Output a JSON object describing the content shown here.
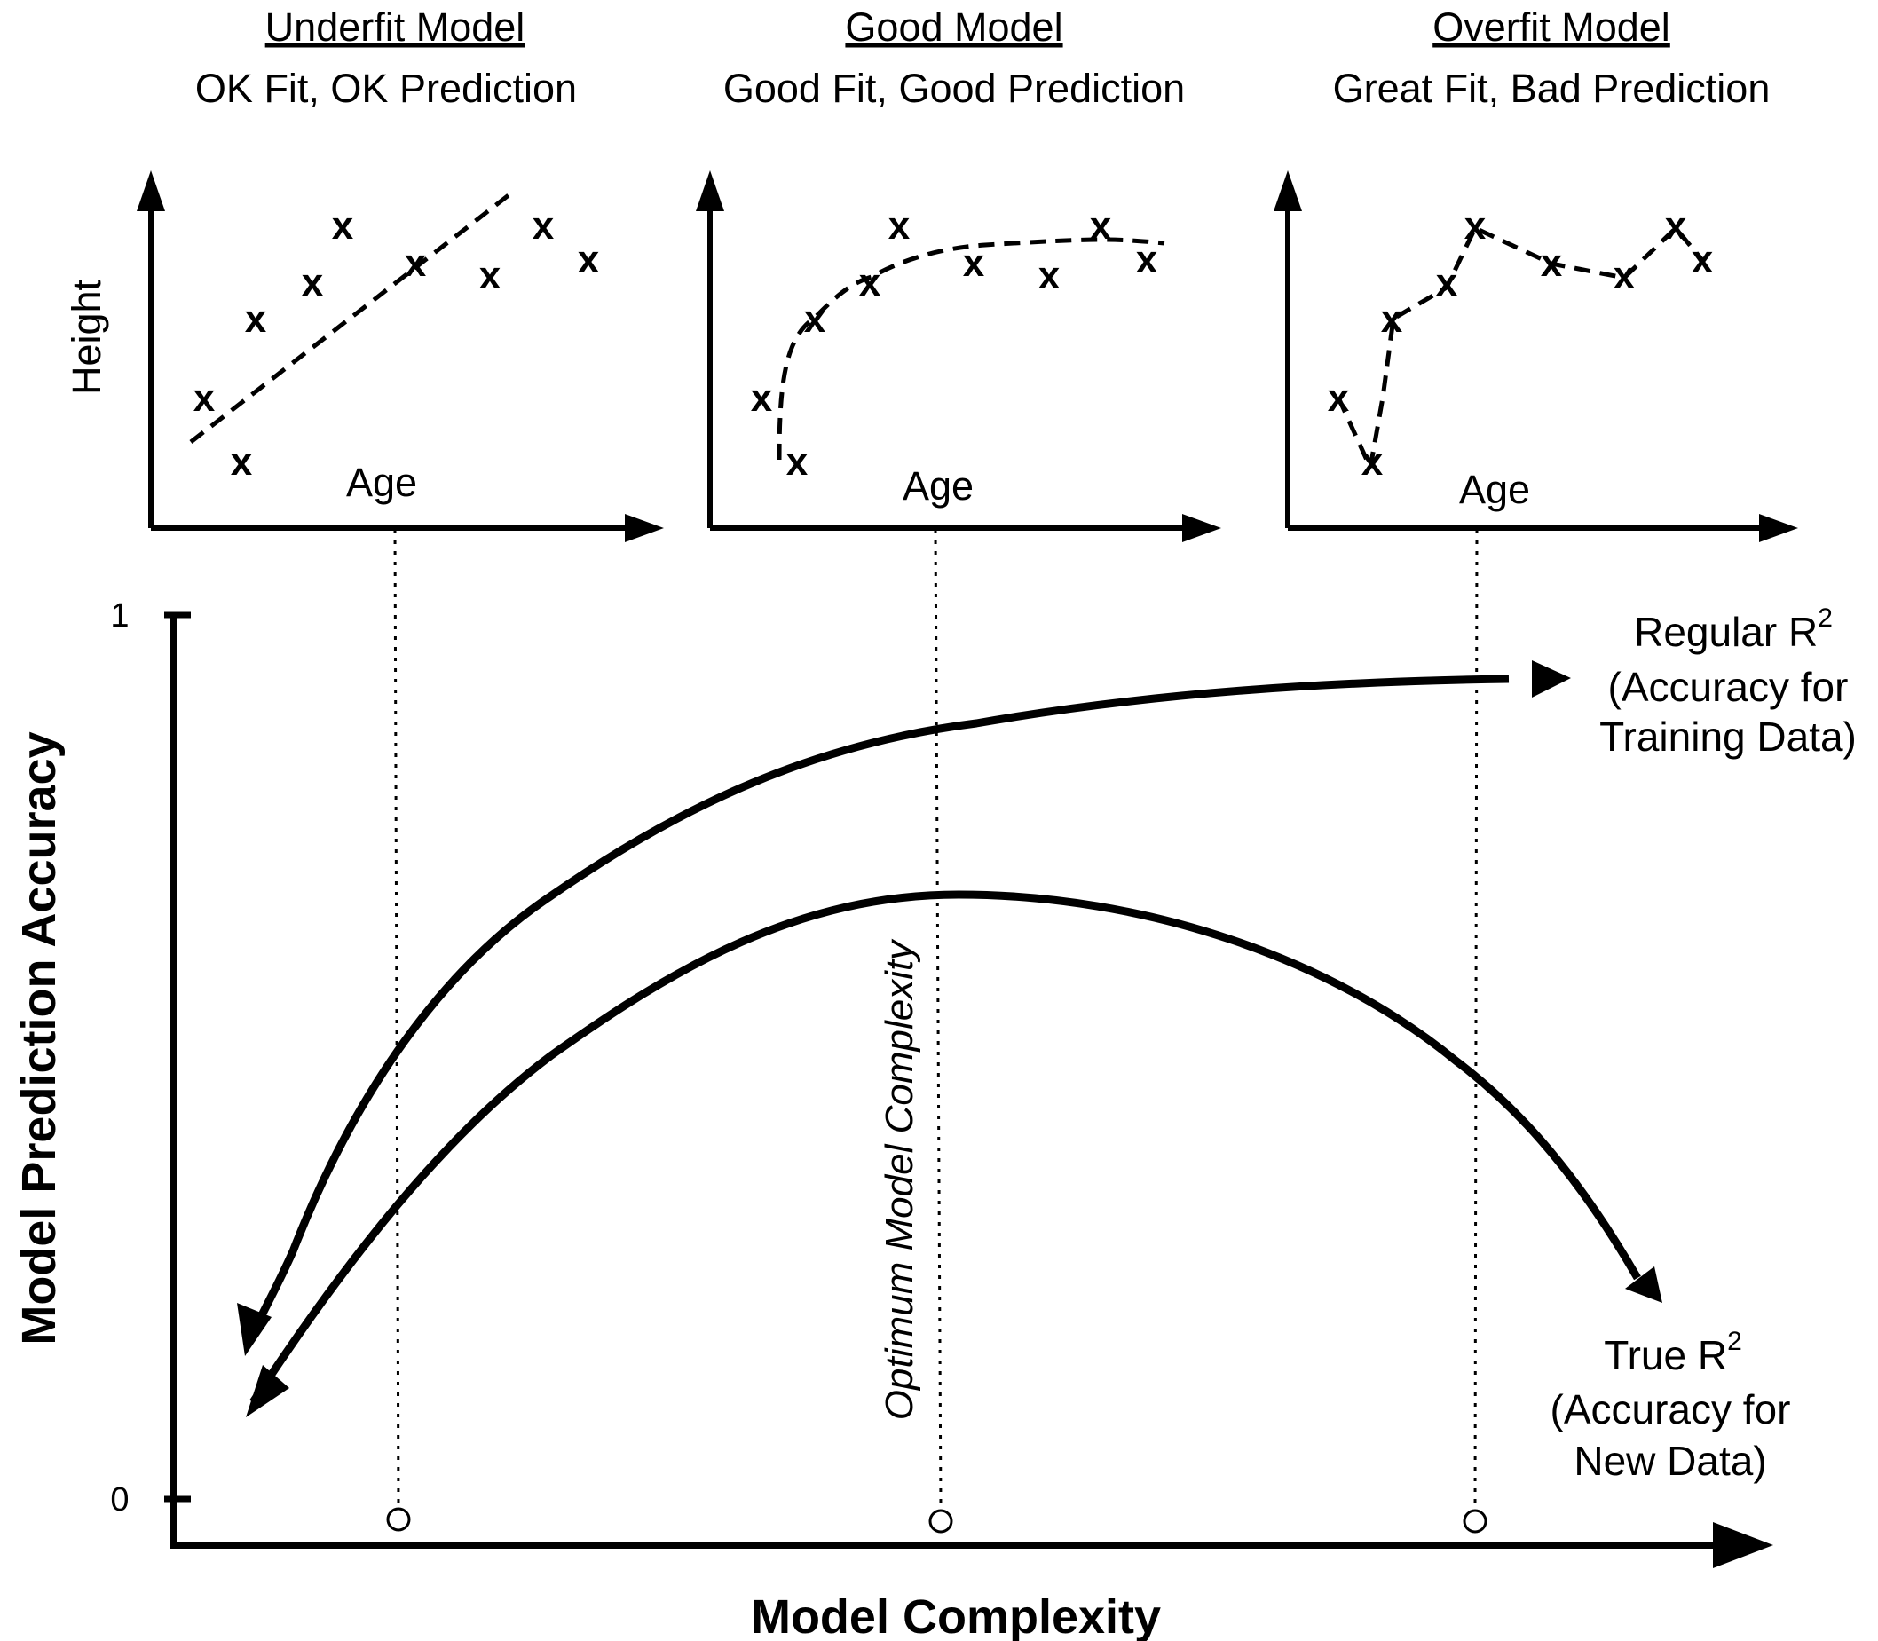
{
  "panels": [
    {
      "title": "Underfit Model",
      "subtitle": "OK Fit, OK Prediction",
      "xlabel": "Age",
      "ylabel": "Height",
      "marker": "x",
      "points": [
        [
          0.08,
          0.4
        ],
        [
          0.16,
          0.19
        ],
        [
          0.21,
          0.65
        ],
        [
          0.33,
          0.75
        ],
        [
          0.39,
          0.92
        ],
        [
          0.54,
          0.81
        ],
        [
          0.7,
          0.78
        ],
        [
          0.81,
          0.92
        ],
        [
          0.91,
          0.82
        ]
      ]
    },
    {
      "title": "Good Model",
      "subtitle": "Good Fit, Good Prediction",
      "xlabel": "Age",
      "ylabel": "",
      "marker": "x",
      "points": [
        [
          0.08,
          0.4
        ],
        [
          0.16,
          0.19
        ],
        [
          0.21,
          0.65
        ],
        [
          0.33,
          0.75
        ],
        [
          0.39,
          0.92
        ],
        [
          0.54,
          0.81
        ],
        [
          0.7,
          0.78
        ],
        [
          0.81,
          0.92
        ],
        [
          0.91,
          0.82
        ]
      ]
    },
    {
      "title": "Overfit Model",
      "subtitle": "Great Fit, Bad Prediction",
      "xlabel": "Age",
      "ylabel": "",
      "marker": "x",
      "points": [
        [
          0.08,
          0.4
        ],
        [
          0.16,
          0.19
        ],
        [
          0.21,
          0.65
        ],
        [
          0.33,
          0.75
        ],
        [
          0.39,
          0.92
        ],
        [
          0.54,
          0.81
        ],
        [
          0.7,
          0.78
        ],
        [
          0.81,
          0.92
        ],
        [
          0.91,
          0.82
        ]
      ]
    }
  ],
  "main": {
    "xlabel": "Model Complexity",
    "ylabel": "Model Prediction Accuracy",
    "tick_top": "1",
    "tick_bottom": "0",
    "optimum_label": "Optimum Model Complexity",
    "regular": {
      "name": "Regular R",
      "sup": "2",
      "line2": "(Accuracy for",
      "line3": "Training Data)"
    },
    "true": {
      "name": "True R",
      "sup": "2",
      "line2": "(Accuracy for",
      "line3": "New Data)"
    }
  },
  "chart_data": {
    "type": "line",
    "xlabel": "Model Complexity",
    "ylabel": "Model Prediction Accuracy",
    "ylim": [
      0,
      1
    ],
    "series": [
      {
        "name": "Regular R2 (Accuracy for Training Data)",
        "x": [
          0.05,
          0.15,
          0.3,
          0.45,
          0.6,
          0.75,
          0.9
        ],
        "values": [
          0.12,
          0.5,
          0.74,
          0.87,
          0.91,
          0.93,
          0.94
        ]
      },
      {
        "name": "True R2 (Accuracy for New Data)",
        "x": [
          0.05,
          0.15,
          0.3,
          0.45,
          0.6,
          0.75,
          0.9
        ],
        "values": [
          0.08,
          0.35,
          0.6,
          0.69,
          0.67,
          0.57,
          0.24
        ]
      }
    ]
  }
}
